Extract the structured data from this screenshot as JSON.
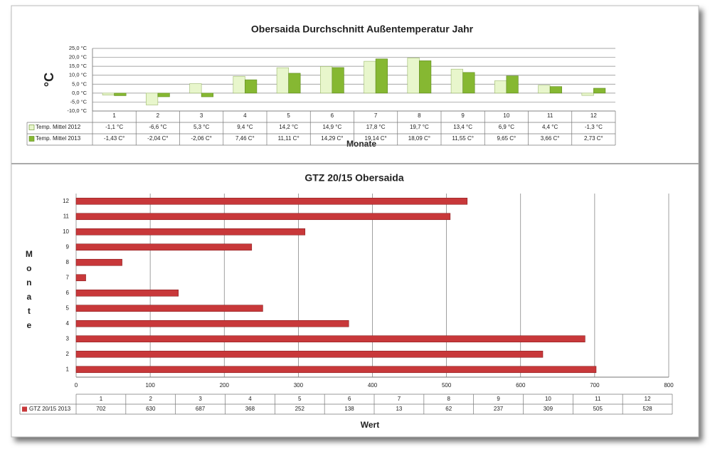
{
  "chart_data": [
    {
      "type": "bar",
      "title": "Obersaida Durchschnitt Außentemperatur Jahr",
      "y_label": "°C",
      "x_label": "Monate",
      "categories": [
        "1",
        "2",
        "3",
        "4",
        "5",
        "6",
        "7",
        "8",
        "9",
        "10",
        "11",
        "12"
      ],
      "series": [
        {
          "name": "Temp. Mittel 2012",
          "color": "#e8f6cc",
          "values": [
            -1.1,
            -6.6,
            5.3,
            9.4,
            14.2,
            14.9,
            17.8,
            19.7,
            13.4,
            6.9,
            4.4,
            -1.3
          ],
          "value_labels": [
            "-1,1 °C",
            "-6,6 °C",
            "5,3 °C",
            "9,4 °C",
            "14,2 °C",
            "14,9 °C",
            "17,8 °C",
            "19,7 °C",
            "13,4 °C",
            "6,9 °C",
            "4,4 °C",
            "-1,3 °C"
          ]
        },
        {
          "name": "Temp. Mittel 2013",
          "color": "#86b832",
          "values": [
            -1.43,
            -2.04,
            -2.06,
            7.46,
            11.11,
            14.29,
            19.14,
            18.09,
            11.55,
            9.65,
            3.66,
            2.73
          ],
          "value_labels": [
            "-1,43 C°",
            "-2,04 C°",
            "-2,06 C°",
            "7,46 C°",
            "11,11 C°",
            "14,29 C°",
            "19,14 C°",
            "18,09 C°",
            "11,55 C°",
            "9,65 C°",
            "3,66 C°",
            "2,73 C°"
          ]
        }
      ],
      "ylim": [
        -10,
        25
      ],
      "yticks": [
        {
          "value": -10,
          "label": "-10,0 °C"
        },
        {
          "value": -5,
          "label": "-5,0 °C"
        },
        {
          "value": 0,
          "label": "0,0 °C"
        },
        {
          "value": 5,
          "label": "5,0 °C"
        },
        {
          "value": 10,
          "label": "10,0 °C"
        },
        {
          "value": 15,
          "label": "15,0 °C"
        },
        {
          "value": 20,
          "label": "20,0 °C"
        },
        {
          "value": 25,
          "label": "25,0 °C"
        }
      ],
      "grid": true
    },
    {
      "type": "barh",
      "title": "GTZ 20/15 Obersaida",
      "y_label": "Monate",
      "x_label": "Wert",
      "categories": [
        "1",
        "2",
        "3",
        "4",
        "5",
        "6",
        "7",
        "8",
        "9",
        "10",
        "11",
        "12"
      ],
      "series": [
        {
          "name": "GTZ 20/15 2013",
          "color": "#c8383a",
          "values": [
            702,
            630,
            687,
            368,
            252,
            138,
            13,
            62,
            237,
            309,
            505,
            528
          ]
        }
      ],
      "xlim": [
        0,
        800
      ],
      "xticks": [
        0,
        100,
        200,
        300,
        400,
        500,
        600,
        700,
        800
      ],
      "grid": true
    }
  ]
}
